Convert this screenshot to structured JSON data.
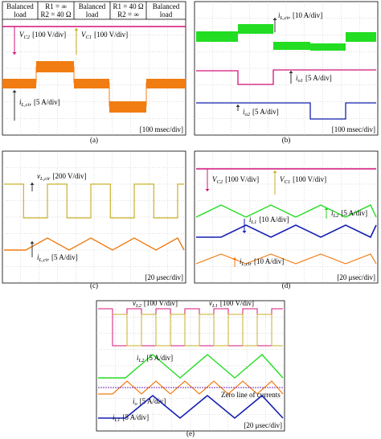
{
  "panels": [
    {
      "caption": "(a)",
      "header": [
        [
          "Balanced",
          "load"
        ],
        [
          "R1 = ∞",
          "R2 = 40 Ω"
        ],
        [
          "Balanced",
          "load"
        ],
        [
          "R1 = 40 Ω",
          "R2 = ∞"
        ],
        [
          "Balanced",
          "load"
        ]
      ],
      "labels": [
        {
          "symbol": "V",
          "sub": "C2",
          "scale": "[100 V/div]"
        },
        {
          "symbol": "V",
          "sub": "C1",
          "scale": "[100 V/div]"
        },
        {
          "symbol": "i",
          "sub": "L,cir",
          "scale": "[5 A/div]"
        }
      ],
      "timebase": "[100 msec/div]"
    },
    {
      "caption": "(b)",
      "labels": [
        {
          "symbol": "i",
          "sub": "L,cir",
          "scale": "[10 A/div]"
        },
        {
          "symbol": "i",
          "sub": "o1",
          "scale": "[5 A/div]"
        },
        {
          "symbol": "i",
          "sub": "o2",
          "scale": "[5 A/div]"
        }
      ],
      "timebase": "[100 msec/div]"
    },
    {
      "caption": "(c)",
      "labels": [
        {
          "symbol": "v",
          "sub": "L,cir",
          "scale": "[200 V/div]"
        },
        {
          "symbol": "i",
          "sub": "L,cir",
          "scale": "[5 A/div]"
        }
      ],
      "timebase": "[20 μsec/div]"
    },
    {
      "caption": "(d)",
      "labels": [
        {
          "symbol": "V",
          "sub": "C2",
          "scale": "[100 V/div]"
        },
        {
          "symbol": "V",
          "sub": "C1",
          "scale": "[100 V/div]"
        },
        {
          "symbol": "i",
          "sub": "L1",
          "scale": "[10 A/div]"
        },
        {
          "symbol": "i",
          "sub": "L2",
          "scale": "[5 A/div]"
        },
        {
          "symbol": "i",
          "sub": "L,cir",
          "scale": "[10 A/div]"
        }
      ],
      "timebase": "[20 μsec/div]"
    },
    {
      "caption": "(e)",
      "labels": [
        {
          "symbol": "v",
          "sub": "L2",
          "scale": "[100 V/div]"
        },
        {
          "symbol": "v",
          "sub": "L1",
          "scale": "[100 V/div]"
        },
        {
          "symbol": "i",
          "sub": "L2",
          "scale": "[5 A/div]"
        },
        {
          "symbol": "i",
          "sub": "o",
          "scale": "[5 A/div]"
        },
        {
          "symbol": "i",
          "sub": "L1",
          "scale": "[5 A/div]"
        }
      ],
      "note": "Zero line of currents",
      "timebase": "[20 μsec/div]"
    }
  ]
}
